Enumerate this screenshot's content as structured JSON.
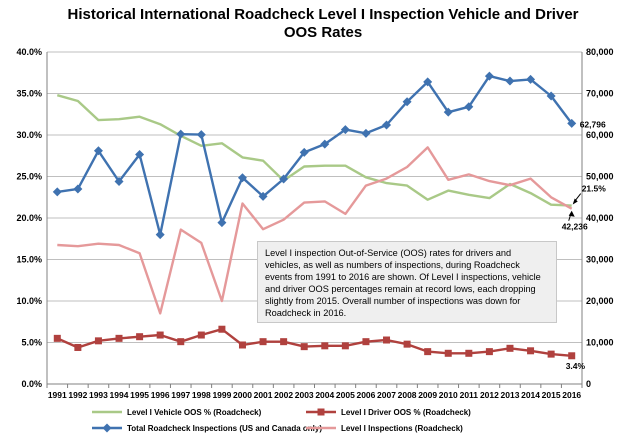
{
  "chart_data": {
    "type": "line",
    "title": "Historical International Roadcheck Level I Inspection Vehicle and Driver OOS Rates",
    "x": [
      1991,
      1992,
      1993,
      1994,
      1995,
      1996,
      1997,
      1998,
      1999,
      2000,
      2001,
      2002,
      2003,
      2004,
      2005,
      2006,
      2007,
      2008,
      2009,
      2010,
      2011,
      2012,
      2013,
      2014,
      2015,
      2016
    ],
    "x_labels": [
      "1991",
      "1992",
      "1993",
      "1994",
      "1995",
      "1996",
      "1997",
      "1998",
      "1999",
      "2000",
      "2001",
      "2002",
      "2003",
      "2004",
      "2005",
      "2006",
      "2007",
      "2008",
      "2009",
      "2010",
      "2011",
      "2012",
      "2013",
      "2014",
      "2015",
      "2016"
    ],
    "y_left": {
      "ylim": [
        0,
        40
      ],
      "ticks": [
        "0.0%",
        "5.0%",
        "10.0%",
        "15.0%",
        "20.0%",
        "25.0%",
        "30.0%",
        "35.0%",
        "40.0%"
      ]
    },
    "y_right": {
      "ylim": [
        0,
        80000
      ],
      "ticks": [
        "0",
        "10,000",
        "20,000",
        "30,000",
        "40,000",
        "50,000",
        "60,000",
        "70,000",
        "80,000"
      ]
    },
    "grid": true,
    "legend_position": "bottom",
    "series": [
      {
        "name": "Level I Vehicle OOS % (Roadcheck)",
        "axis": "left",
        "color": "#a9c987",
        "marker": "none",
        "values": [
          34.8,
          34.1,
          31.8,
          31.9,
          32.2,
          31.3,
          29.9,
          28.7,
          29.0,
          27.3,
          26.9,
          24.5,
          26.2,
          26.3,
          26.3,
          24.9,
          24.2,
          23.9,
          22.2,
          23.3,
          22.8,
          22.4,
          24.1,
          23.0,
          21.6,
          21.5
        ]
      },
      {
        "name": "Level I Driver OOS % (Roadcheck)",
        "axis": "left",
        "color": "#b0413e",
        "marker": "square",
        "values": [
          5.5,
          4.4,
          5.2,
          5.5,
          5.7,
          5.9,
          5.1,
          5.9,
          6.6,
          4.7,
          5.1,
          5.1,
          4.5,
          4.6,
          4.6,
          5.1,
          5.3,
          4.8,
          3.9,
          3.7,
          3.7,
          3.9,
          4.3,
          4.0,
          3.6,
          3.4
        ]
      },
      {
        "name": "Total Roadcheck Inspections (US and Canada only)",
        "axis": "right",
        "color": "#3f72b0",
        "marker": "diamond",
        "values": [
          46300,
          47000,
          56200,
          48800,
          55300,
          36000,
          60200,
          60100,
          38900,
          49700,
          45200,
          49400,
          55800,
          57800,
          61300,
          60400,
          62400,
          68000,
          72800,
          65500,
          66800,
          74200,
          73000,
          73400,
          69400,
          62796
        ]
      },
      {
        "name": "Level I Inspections (Roadcheck)",
        "axis": "right",
        "color": "#e5999a",
        "marker": "none",
        "values": [
          33500,
          33200,
          33800,
          33500,
          31500,
          17000,
          37200,
          34000,
          20000,
          43500,
          37300,
          39600,
          43700,
          44000,
          41000,
          47800,
          49500,
          52300,
          57000,
          49200,
          50500,
          48900,
          47900,
          49500,
          45000,
          42236
        ]
      }
    ],
    "annotations": [
      {
        "label": "62,796",
        "series": 2,
        "index": 25
      },
      {
        "label": "21.5%",
        "series": 0,
        "index": 25
      },
      {
        "label": "42,236",
        "series": 3,
        "index": 25
      },
      {
        "label": "3.4%",
        "series": 1,
        "index": 25
      }
    ],
    "note": "Level I inspection Out-of-Service (OOS) rates for drivers and vehicles, as well as numbers of inspections, during Roadcheck events from 1991 to 2016 are shown.  Of Level I inspections, vehicle and driver OOS percentages remain at record lows, each dropping slightly from 2015.  Overall number of inspections was down for Roadcheck in 2016."
  }
}
